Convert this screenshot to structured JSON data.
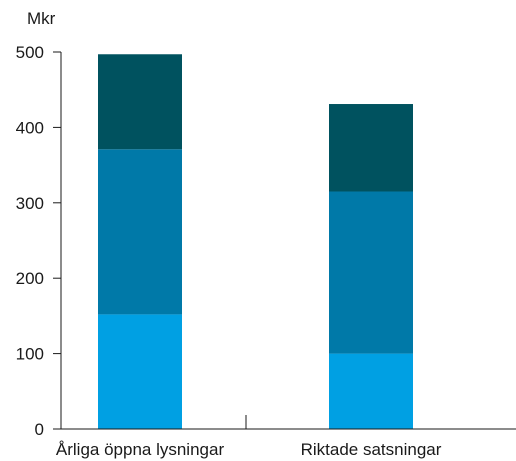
{
  "chart_data": {
    "type": "bar",
    "stacked": true,
    "title": "",
    "ylabel": "Mkr",
    "xlabel": "",
    "ylim": [
      0,
      500
    ],
    "yticks": [
      0,
      100,
      200,
      300,
      400,
      500
    ],
    "grid": false,
    "categories": [
      "Årliga öppna lysningar",
      "Riktade satsningar"
    ],
    "series": [
      {
        "color": "#00a0e3",
        "values": [
          152,
          100
        ]
      },
      {
        "color": "#0079a8",
        "values": [
          219,
          215
        ]
      },
      {
        "color": "#00525f",
        "values": [
          126,
          116
        ]
      }
    ]
  }
}
